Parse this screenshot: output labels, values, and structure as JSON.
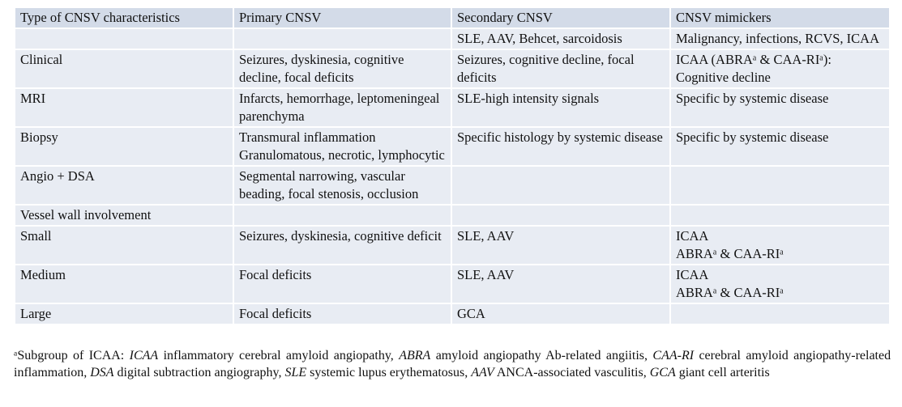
{
  "table": {
    "header": [
      "Type of CNSV characteristics",
      "Primary CNSV",
      "Secondary CNSV",
      "CNSV mimickers"
    ],
    "rows": [
      [
        null,
        null,
        "SLE, AAV, Behcet, sarcoidosis",
        "Malignancy, infections, RCVS, ICAA"
      ],
      [
        "Clinical",
        "Seizures, dyskinesia, cognitive decline, focal deficits",
        "Seizures, cognitive decline, focal deficits",
        "ICAA (ABRAᵃ & CAA-RIᵃ): Cognitive decline"
      ],
      [
        "MRI",
        "Infarcts, hemorrhage, leptomeningeal parenchyma",
        "SLE-high intensity signals",
        "Specific by systemic disease"
      ],
      [
        "Biopsy",
        "Transmural inflammation\nGranulomatous, necrotic, lymphocytic",
        "Specific histology by systemic disease",
        "Specific by systemic disease"
      ],
      [
        "Angio + DSA",
        "Segmental narrowing, vascular beading, focal stenosis, occlusion",
        null,
        null
      ],
      [
        "Vessel wall involvement",
        null,
        null,
        null
      ],
      [
        "Small",
        "Seizures, dyskinesia, cognitive deficit",
        "SLE, AAV",
        "ICAA\nABRAᵃ & CAA-RIᵃ"
      ],
      [
        "Medium",
        "Focal deficits",
        "SLE, AAV",
        "ICAA\nABRAᵃ & CAA-RIᵃ"
      ],
      [
        "Large",
        "Focal deficits",
        "GCA",
        null
      ]
    ]
  },
  "footnote": {
    "lead": "ᵃSubgroup of ICAA:",
    "items": [
      {
        "abbr": "ICAA",
        "text": "inflammatory cerebral amyloid angiopathy,"
      },
      {
        "abbr": "ABRA",
        "text": "amyloid angiopathy Ab-related angiitis,"
      },
      {
        "abbr": "CAA-RI",
        "text": "cerebral amyloid angiopathy-related inflammation,"
      },
      {
        "abbr": "DSA",
        "text": "digital subtraction angiography,"
      },
      {
        "abbr": "SLE",
        "text": "systemic lupus erythematosus,"
      },
      {
        "abbr": "AAV",
        "text": "ANCA-associated vasculitis,"
      },
      {
        "abbr": "GCA",
        "text": "giant cell arteritis"
      }
    ]
  }
}
